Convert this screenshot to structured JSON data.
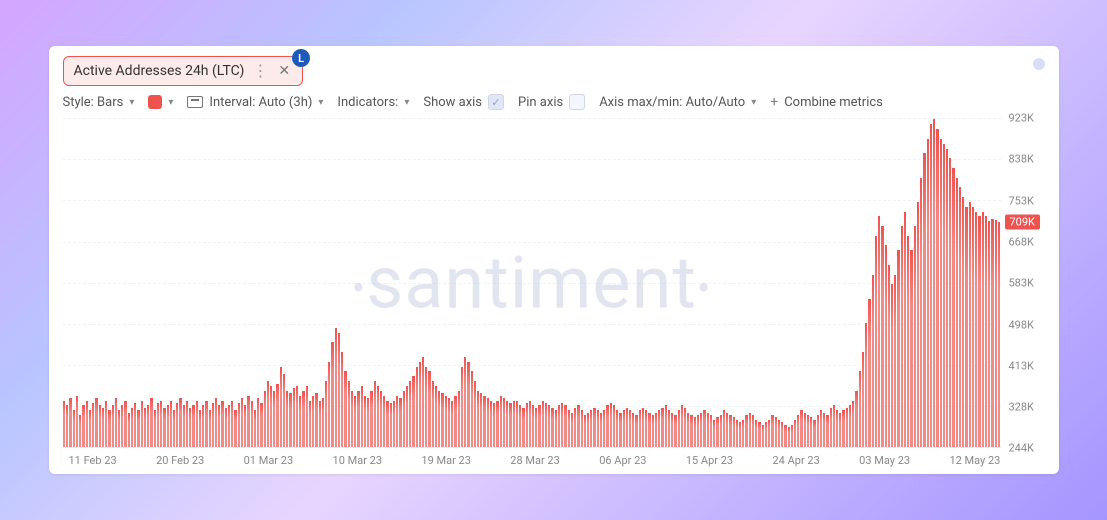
{
  "metric_chip": {
    "label": "Active Addresses 24h (LTC)",
    "badge_label": "L",
    "badge_bg": "#1e5bb8",
    "badge_fg": "#ffffff",
    "border_color": "#ef5350",
    "bg_color": "#fdeaea"
  },
  "toolbar": {
    "style_label": "Style: Bars",
    "interval_label": "Interval: Auto (3h)",
    "indicators_label": "Indicators:",
    "show_axis_label": "Show axis",
    "pin_axis_label": "Pin axis",
    "axis_minmax_label": "Axis max/min: Auto/Auto",
    "combine_label": "Combine metrics",
    "swatch_color": "#ef5350"
  },
  "watermark": "santiment",
  "chart": {
    "type": "bar",
    "bar_color": "#f28b88",
    "bar_color_top": "#ef5350",
    "background_color": "#ffffff",
    "grid_color": "#eef1f6",
    "ylim_min": 244000,
    "ylim_max": 923000,
    "yticks": [
      {
        "v": 923000,
        "label": "923K"
      },
      {
        "v": 838000,
        "label": "838K"
      },
      {
        "v": 753000,
        "label": "753K"
      },
      {
        "v": 668000,
        "label": "668K"
      },
      {
        "v": 583000,
        "label": "583K"
      },
      {
        "v": 498000,
        "label": "498K"
      },
      {
        "v": 413000,
        "label": "413K"
      },
      {
        "v": 328000,
        "label": "328K"
      },
      {
        "v": 244000,
        "label": "244K"
      }
    ],
    "current_value": 709000,
    "current_label": "709K",
    "current_bg": "#ef5350",
    "xticks": [
      "11 Feb 23",
      "20 Feb 23",
      "01 Mar 23",
      "10 Mar 23",
      "19 Mar 23",
      "28 Mar 23",
      "06 Apr 23",
      "15 Apr 23",
      "24 Apr 23",
      "03 May 23",
      "12 May 23"
    ],
    "values": [
      340,
      330,
      345,
      320,
      350,
      310,
      330,
      340,
      320,
      335,
      345,
      330,
      325,
      340,
      320,
      330,
      345,
      320,
      330,
      340,
      315,
      325,
      335,
      320,
      340,
      325,
      330,
      345,
      320,
      335,
      340,
      325,
      330,
      340,
      320,
      335,
      345,
      330,
      340,
      325,
      330,
      340,
      320,
      330,
      340,
      320,
      335,
      345,
      330,
      340,
      325,
      330,
      340,
      320,
      335,
      345,
      330,
      350,
      340,
      320,
      345,
      335,
      360,
      380,
      370,
      360,
      375,
      410,
      395,
      360,
      355,
      365,
      370,
      350,
      360,
      370,
      340,
      350,
      355,
      340,
      345,
      380,
      420,
      460,
      490,
      480,
      440,
      400,
      380,
      360,
      350,
      360,
      370,
      350,
      345,
      360,
      380,
      370,
      360,
      350,
      340,
      335,
      340,
      350,
      345,
      360,
      370,
      380,
      390,
      410,
      420,
      430,
      410,
      400,
      380,
      370,
      360,
      355,
      350,
      345,
      340,
      350,
      360,
      410,
      430,
      420,
      400,
      380,
      360,
      355,
      350,
      345,
      340,
      335,
      340,
      350,
      345,
      340,
      335,
      340,
      340,
      330,
      325,
      335,
      340,
      330,
      325,
      330,
      340,
      335,
      330,
      325,
      320,
      330,
      335,
      330,
      320,
      315,
      325,
      330,
      320,
      310,
      315,
      320,
      325,
      320,
      315,
      320,
      330,
      335,
      330,
      320,
      315,
      320,
      325,
      320,
      315,
      310,
      320,
      325,
      320,
      315,
      310,
      315,
      320,
      325,
      330,
      320,
      315,
      310,
      320,
      330,
      325,
      315,
      310,
      305,
      310,
      315,
      320,
      315,
      310,
      300,
      305,
      310,
      320,
      315,
      310,
      305,
      300,
      295,
      300,
      310,
      315,
      310,
      300,
      295,
      290,
      295,
      300,
      310,
      305,
      300,
      295,
      290,
      285,
      290,
      300,
      310,
      320,
      315,
      310,
      305,
      300,
      310,
      320,
      315,
      310,
      325,
      330,
      320,
      315,
      320,
      325,
      330,
      340,
      360,
      400,
      440,
      500,
      550,
      600,
      680,
      720,
      700,
      660,
      620,
      580,
      600,
      650,
      700,
      730,
      680,
      650,
      700,
      750,
      800,
      850,
      880,
      910,
      920,
      900,
      880,
      870,
      860,
      840,
      820,
      800,
      780,
      760,
      740,
      750,
      740,
      730,
      720,
      730,
      720,
      710,
      715,
      712,
      709
    ]
  }
}
